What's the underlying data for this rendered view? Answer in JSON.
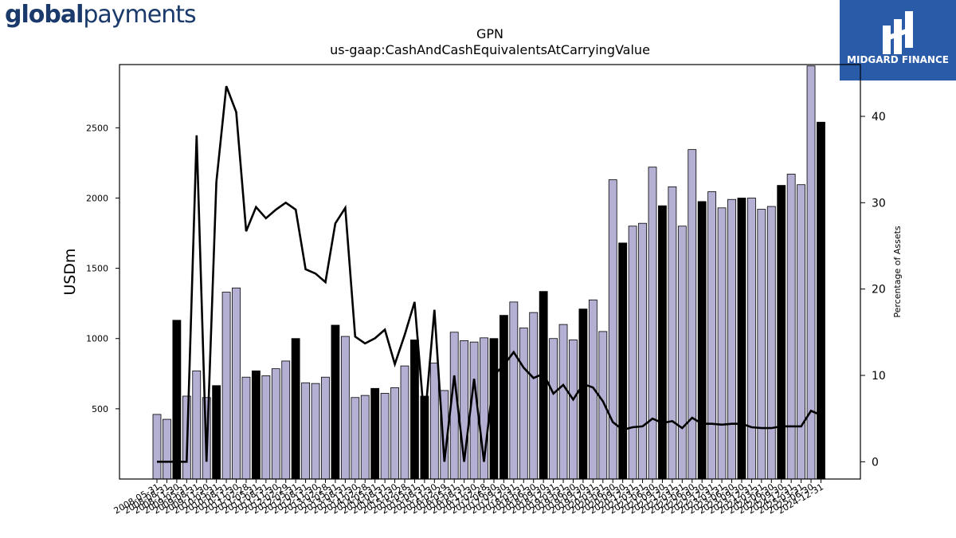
{
  "brand": {
    "left_bold": "global",
    "left_regular": "payments",
    "right_text": "MIDGARD FINANCE"
  },
  "chart_data": {
    "type": "bar",
    "title": "GPN",
    "subtitle": "us-gaap:CashAndCashEquivalentsAtCarryingValue",
    "ylabel": "USDm",
    "y2label": "Percentage of Assets",
    "ylim": [
      0,
      2950
    ],
    "y2lim": [
      -2,
      46
    ],
    "yticks": [
      500,
      1000,
      1500,
      2000,
      2500
    ],
    "y2ticks": [
      0,
      10,
      20,
      30,
      40
    ],
    "colors": {
      "bar": "#b3b0d4",
      "bar_highlight": "#000000",
      "line": "#000000"
    },
    "categories": [
      "2008-05-31",
      "2008-08-31",
      "2008-11-30",
      "2009-05-31",
      "2009-08-31",
      "2009-11-30",
      "2010-05-31",
      "2010-08-31",
      "2010-11-30",
      "2011-02-28",
      "2011-05-31",
      "2011-08-31",
      "2011-11-30",
      "2012-02-29",
      "2012-05-31",
      "2012-08-31",
      "2012-11-30",
      "2013-02-28",
      "2013-05-31",
      "2013-08-31",
      "2013-11-30",
      "2014-02-28",
      "2014-05-31",
      "2014-08-31",
      "2014-11-30",
      "2015-02-28",
      "2015-05-31",
      "2015-08-31",
      "2015-11-30",
      "2016-02-29",
      "2016-05-31",
      "2016-08-31",
      "2016-11-30",
      "2017-02-28",
      "2017-06-30",
      "2017-09-30",
      "2017-12-31",
      "2018-03-31",
      "2018-06-30",
      "2018-09-30",
      "2018-12-31",
      "2019-03-31",
      "2019-06-30",
      "2019-09-30",
      "2019-12-31",
      "2020-03-31",
      "2020-06-30",
      "2020-09-30",
      "2020-12-31",
      "2021-03-31",
      "2021-06-30",
      "2021-09-30",
      "2021-12-31",
      "2022-03-31",
      "2022-06-30",
      "2022-09-30",
      "2022-12-31",
      "2023-03-31",
      "2023-06-30",
      "2023-09-30",
      "2023-12-31",
      "2024-03-31",
      "2024-06-30",
      "2024-09-30",
      "2024-12-31",
      "2025-03-31",
      "2025-06-30",
      "2024-12-31"
    ],
    "x_tick_labels": [
      "2008-05-31",
      "2008-08-31",
      "2008-11-30",
      "2009-05-31",
      "2009-08-31",
      "2009-11-30",
      "2010-05-31",
      "2010-08-31",
      "2010-11-30",
      "2011-02-28",
      "2011-05-31",
      "2011-08-31",
      "2011-11-30",
      "2012-02-29",
      "2012-05-31",
      "2012-08-31",
      "2012-11-30",
      "2013-02-28",
      "2013-05-31",
      "2013-08-31",
      "2013-11-30",
      "2014-02-28",
      "2014-05-31",
      "2014-08-31",
      "2014-11-30",
      "2015-02-28",
      "2015-05-31",
      "2015-08-31",
      "2015-11-30",
      "2016-02-29",
      "2016-05-31",
      "2016-08-31",
      "2016-11-30",
      "2017-02-28",
      "2017-06-30",
      "2017-09-30",
      "2017-12-31",
      "2018-03-31",
      "2018-06-30",
      "2018-09-30",
      "2018-12-31",
      "2019-03-31",
      "2019-06-30",
      "2019-09-30",
      "2019-12-31",
      "2020-03-31",
      "2020-06-30",
      "2020-09-30",
      "2020-12-31",
      "2021-03-31",
      "2021-06-30",
      "2021-09-30",
      "2021-12-31",
      "2022-03-31",
      "2022-06-30",
      "2022-09-30",
      "2022-12-31",
      "2023-03-31",
      "2023-06-30",
      "2023-09-30",
      "2023-12-31",
      "2024-03-31",
      "2024-06-30",
      "2024-09-30",
      "2024-12-31",
      "2025-03-31",
      "2025-06-30",
      "2024-12-31"
    ],
    "values": [
      460,
      425,
      1130,
      590,
      770,
      580,
      665,
      1330,
      1360,
      725,
      770,
      735,
      785,
      840,
      1000,
      685,
      680,
      725,
      1095,
      1015,
      580,
      595,
      645,
      610,
      650,
      805,
      990,
      590,
      825,
      630,
      1045,
      985,
      975,
      1005,
      1000,
      1165,
      1260,
      1075,
      1185,
      1335,
      1000,
      1100,
      990,
      1210,
      1275,
      1050,
      2130,
      1680,
      1800,
      1820,
      2220,
      1945,
      2080,
      1800,
      2345,
      1975,
      2045,
      1930,
      1990,
      2000,
      2000,
      1920,
      1940,
      2090,
      2170,
      2095,
      2940,
      2540
    ],
    "highlight": [
      false,
      false,
      true,
      false,
      false,
      false,
      true,
      false,
      false,
      false,
      true,
      false,
      false,
      false,
      true,
      false,
      false,
      false,
      true,
      false,
      false,
      false,
      true,
      false,
      false,
      false,
      true,
      true,
      false,
      false,
      false,
      false,
      false,
      false,
      true,
      true,
      false,
      false,
      false,
      true,
      false,
      false,
      false,
      true,
      false,
      false,
      false,
      true,
      false,
      false,
      false,
      true,
      false,
      false,
      false,
      true,
      false,
      false,
      false,
      true,
      false,
      false,
      false,
      true,
      false,
      false,
      false,
      true
    ],
    "pct_assets": [
      0,
      0,
      0,
      0,
      37.8,
      0,
      32.4,
      43.5,
      40.5,
      26.7,
      29.5,
      28.2,
      29.2,
      30.0,
      29.2,
      22.3,
      21.8,
      20.8,
      27.6,
      29.4,
      14.5,
      13.7,
      14.3,
      15.3,
      11.3,
      14.7,
      18.5,
      4.5,
      17.6,
      0,
      10.0,
      0,
      9.6,
      0,
      10.0,
      11.2,
      12.7,
      10.9,
      9.7,
      10.2,
      7.9,
      8.9,
      7.2,
      9.0,
      8.6,
      7.0,
      4.6,
      3.7,
      4.0,
      4.1,
      5.0,
      4.5,
      4.7,
      3.9,
      5.1,
      4.4,
      4.4,
      4.3,
      4.4,
      4.4,
      4.0,
      3.9,
      3.9,
      4.1,
      4.1,
      4.1,
      5.9,
      5.4
    ]
  }
}
